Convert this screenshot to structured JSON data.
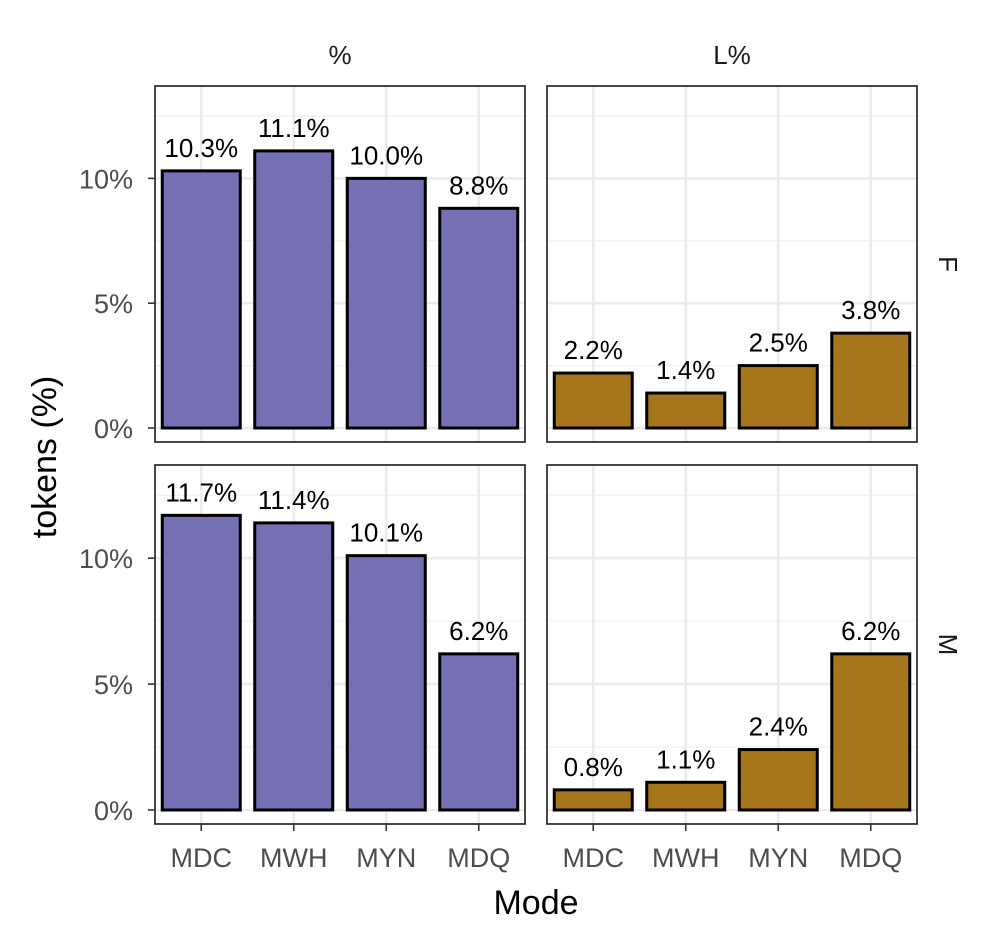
{
  "chart_data": {
    "type": "bar",
    "xlabel": "Mode",
    "ylabel": "tokens (%)",
    "ylim": [
      0,
      13.7
    ],
    "y_ticks": [
      {
        "value": 0,
        "label": "0%"
      },
      {
        "value": 5,
        "label": "5%"
      },
      {
        "value": 10,
        "label": "10%"
      }
    ],
    "categories": [
      "MDC",
      "MWH",
      "MYN",
      "MDQ"
    ],
    "facet_cols": [
      "%",
      "L%"
    ],
    "facet_rows": [
      "F",
      "M"
    ],
    "colors": {
      "%": "#7570b3",
      "L%": "#a6761d"
    },
    "grid": true,
    "panels": [
      {
        "row": "F",
        "col": "%",
        "values": [
          10.3,
          11.1,
          10.0,
          8.8
        ],
        "labels": [
          "10.3%",
          "11.1%",
          "10.0%",
          "8.8%"
        ]
      },
      {
        "row": "F",
        "col": "L%",
        "values": [
          2.2,
          1.4,
          2.5,
          3.8
        ],
        "labels": [
          "2.2%",
          "1.4%",
          "2.5%",
          "3.8%"
        ]
      },
      {
        "row": "M",
        "col": "%",
        "values": [
          11.7,
          11.4,
          10.1,
          6.2
        ],
        "labels": [
          "11.7%",
          "11.4%",
          "10.1%",
          "6.2%"
        ]
      },
      {
        "row": "M",
        "col": "L%",
        "values": [
          0.8,
          1.1,
          2.4,
          6.2
        ],
        "labels": [
          "0.8%",
          "1.1%",
          "2.4%",
          "6.2%"
        ]
      }
    ]
  }
}
